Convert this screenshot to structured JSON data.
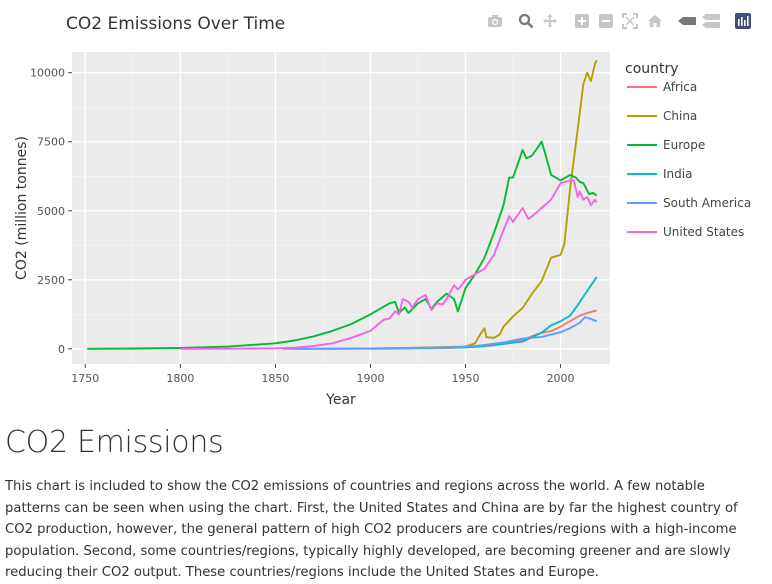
{
  "chart_data": {
    "type": "line",
    "title": "CO2 Emissions Over Time",
    "xlabel": "Year",
    "ylabel": "CO2 (million tonnes)",
    "xlim": [
      1743,
      2026
    ],
    "ylim": [
      -550,
      10750
    ],
    "x_ticks": [
      1750,
      1800,
      1850,
      1900,
      1950,
      2000
    ],
    "y_ticks": [
      0,
      2500,
      5000,
      7500,
      10000
    ],
    "y_tick_labels": [
      "0",
      "2500",
      "5000",
      "7500",
      "10000"
    ],
    "grid": true,
    "legend": {
      "title": "country",
      "placement": "right"
    },
    "series": [
      {
        "name": "Africa",
        "color": "#F8766D",
        "x": [
          1880,
          1900,
          1920,
          1940,
          1950,
          1960,
          1970,
          1980,
          1985,
          1990,
          1995,
          2000,
          2005,
          2010,
          2015,
          2019
        ],
        "y": [
          1,
          5,
          15,
          30,
          50,
          90,
          170,
          320,
          460,
          580,
          640,
          800,
          1000,
          1200,
          1320,
          1390
        ]
      },
      {
        "name": "China",
        "color": "#B79F00",
        "x": [
          1900,
          1950,
          1955,
          1958,
          1960,
          1961,
          1965,
          1968,
          1970,
          1975,
          1980,
          1985,
          1990,
          1995,
          2000,
          2002,
          2005,
          2010,
          2012,
          2014,
          2016,
          2018,
          2019
        ],
        "y": [
          0,
          80,
          200,
          550,
          750,
          420,
          400,
          520,
          800,
          1170,
          1480,
          2000,
          2450,
          3300,
          3400,
          3800,
          5800,
          8500,
          9600,
          10000,
          9700,
          10300,
          10450
        ]
      },
      {
        "name": "Europe",
        "color": "#00BA38",
        "x": [
          1751,
          1775,
          1800,
          1825,
          1850,
          1860,
          1870,
          1880,
          1890,
          1900,
          1905,
          1910,
          1913,
          1915,
          1918,
          1920,
          1925,
          1929,
          1932,
          1935,
          1940,
          1944,
          1946,
          1950,
          1955,
          1960,
          1965,
          1970,
          1973,
          1975,
          1979,
          1980,
          1982,
          1985,
          1988,
          1990,
          1992,
          1995,
          2000,
          2005,
          2008,
          2010,
          2012,
          2015,
          2017,
          2019
        ],
        "y": [
          0,
          10,
          30,
          80,
          200,
          300,
          450,
          650,
          900,
          1250,
          1450,
          1650,
          1700,
          1300,
          1500,
          1300,
          1650,
          1800,
          1450,
          1700,
          2000,
          1800,
          1350,
          2200,
          2700,
          3300,
          4200,
          5200,
          6200,
          6200,
          7000,
          7200,
          6900,
          7000,
          7300,
          7500,
          7050,
          6300,
          6100,
          6300,
          6200,
          6050,
          6000,
          5600,
          5650,
          5550
        ]
      },
      {
        "name": "India",
        "color": "#00BFC4",
        "x": [
          1860,
          1880,
          1900,
          1920,
          1940,
          1950,
          1960,
          1970,
          1980,
          1990,
          1995,
          2000,
          2005,
          2010,
          2015,
          2019
        ],
        "y": [
          1,
          3,
          15,
          25,
          40,
          50,
          110,
          180,
          260,
          580,
          850,
          1000,
          1200,
          1680,
          2200,
          2600
        ]
      },
      {
        "name": "South America",
        "color": "#619CFF",
        "x": [
          1854,
          1863,
          1880,
          1900,
          1920,
          1940,
          1950,
          1960,
          1970,
          1980,
          1990,
          2000,
          2005,
          2010,
          2013,
          2015,
          2017,
          2019
        ],
        "y": [
          0,
          0,
          2,
          15,
          30,
          50,
          70,
          140,
          230,
          370,
          430,
          600,
          750,
          940,
          1150,
          1100,
          1050,
          1000
        ]
      },
      {
        "name": "United States",
        "color": "#F564E3",
        "x": [
          1800,
          1825,
          1850,
          1860,
          1870,
          1880,
          1890,
          1900,
          1905,
          1907,
          1910,
          1913,
          1915,
          1917,
          1920,
          1922,
          1925,
          1929,
          1932,
          1935,
          1938,
          1940,
          1944,
          1946,
          1948,
          1950,
          1955,
          1960,
          1965,
          1970,
          1973,
          1975,
          1980,
          1983,
          1985,
          1990,
          1995,
          2000,
          2005,
          2007,
          2009,
          2010,
          2012,
          2014,
          2016,
          2018,
          2019
        ],
        "y": [
          0,
          5,
          20,
          40,
          100,
          200,
          400,
          650,
          950,
          1050,
          1100,
          1350,
          1250,
          1800,
          1700,
          1500,
          1800,
          1950,
          1400,
          1650,
          1600,
          1800,
          2300,
          2150,
          2300,
          2500,
          2700,
          2900,
          3400,
          4300,
          4800,
          4600,
          5100,
          4700,
          4800,
          5100,
          5400,
          6000,
          6100,
          6100,
          5500,
          5700,
          5400,
          5500,
          5200,
          5400,
          5300
        ]
      }
    ]
  },
  "section": {
    "heading": "CO2 Emissions",
    "paragraph": "This chart is included to show the CO2 emissions of countries and regions across the world. A few notable patterns can be seen when using the chart. First, the United States and China are by far the highest country of CO2 production, however, the general pattern of high CO2 producers are countries/regions with a high-income population. Second, some countries/regions, typically highly developed, are becoming greener and are slowly reducing their CO2 output. These countries/regions include the United States and Europe."
  },
  "modebar": {
    "buttons": [
      "camera-icon",
      "zoom-icon",
      "pan-icon",
      "zoom-in-icon",
      "zoom-out-icon",
      "autoscale-icon",
      "home-icon",
      "hover-closest-icon",
      "hover-compare-icon",
      "plotly-logo-icon"
    ]
  }
}
